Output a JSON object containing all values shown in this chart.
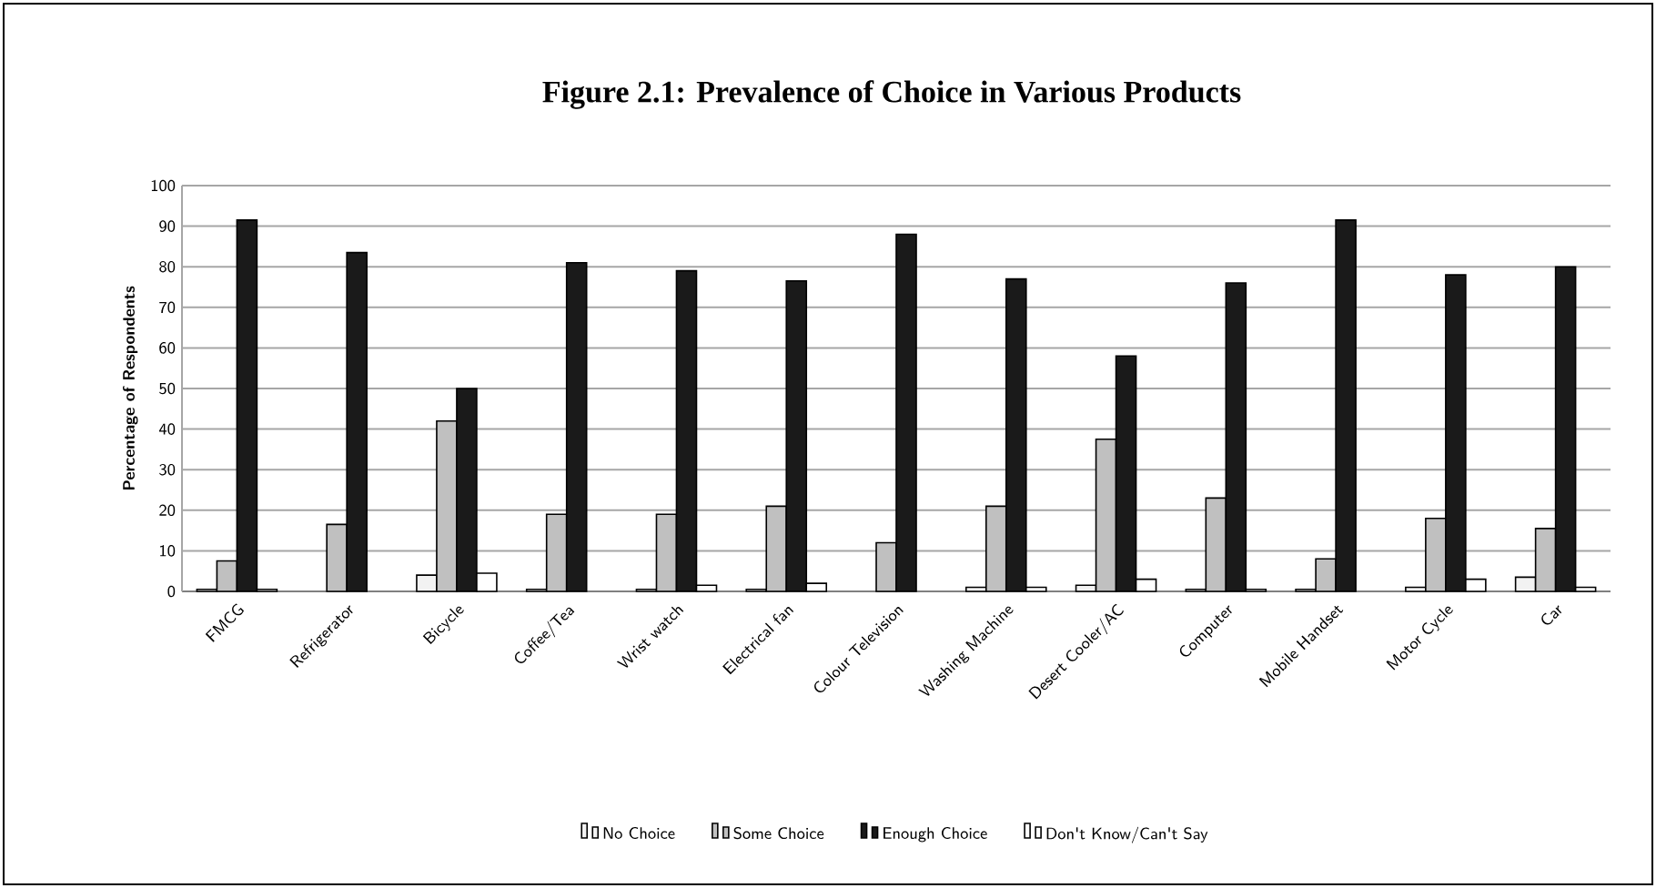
{
  "chart_data": {
    "type": "bar",
    "title": "Figure 2.1: Prevalence of Choice in Various Products",
    "ylabel": "Percentage of Respondents",
    "categories": [
      "FMCG",
      "Refrigerator",
      "Bicycle",
      "Coffee/Tea",
      "Wrist watch",
      "Electrical fan",
      "Colour Television",
      "Washing Machine",
      "Desert Cooler/AC",
      "Computer",
      "Mobile Handset",
      "Motor Cycle",
      "Car"
    ],
    "series": [
      {
        "name": "No Choice",
        "color": "#f2f2f2",
        "values": [
          0.5,
          null,
          4,
          0.5,
          0.5,
          0.5,
          null,
          1,
          1.5,
          0.5,
          0.5,
          1,
          3.5
        ]
      },
      {
        "name": "Some Choice",
        "color": "#c0c0c0",
        "values": [
          7.5,
          16.5,
          42,
          19,
          19,
          21,
          12,
          21,
          37.5,
          23,
          8,
          18,
          15.5
        ]
      },
      {
        "name": "Enough Choice",
        "color": "#1a1a1a",
        "values": [
          91.5,
          83.5,
          50,
          81,
          79,
          76.5,
          88,
          77,
          58,
          76,
          91.5,
          78,
          80
        ]
      },
      {
        "name": "Don't Know/Can't Say",
        "color": "#ffffff",
        "values": [
          0.5,
          null,
          4.5,
          null,
          1.5,
          2,
          null,
          1,
          3,
          0.5,
          null,
          3,
          1
        ]
      }
    ],
    "ylim": [
      0,
      100
    ],
    "yticks": [
      0,
      10,
      20,
      30,
      40,
      50,
      60,
      70,
      80,
      90,
      100
    ],
    "grid": "y",
    "legend": "bottom"
  }
}
